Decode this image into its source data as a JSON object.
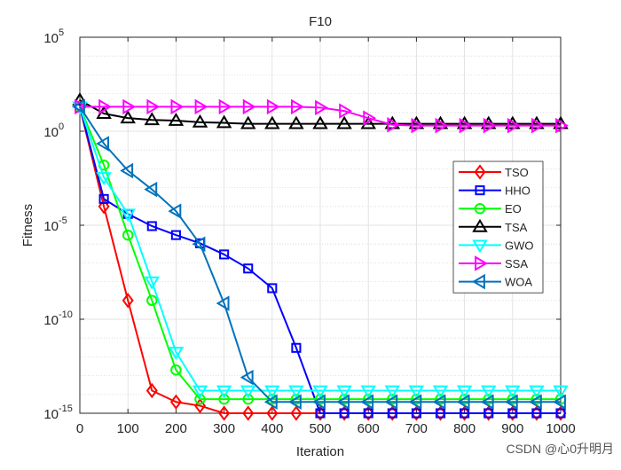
{
  "chart_data": {
    "type": "line",
    "title": "F10",
    "xlabel": "Iteration",
    "ylabel": "Fitness",
    "log_y": true,
    "grid": true,
    "minor_grid": true,
    "legend": "east",
    "watermark": "CSDN @心0升明月",
    "xlim": [
      0,
      1000
    ],
    "xticks": [
      0,
      100,
      200,
      300,
      400,
      500,
      600,
      700,
      800,
      900,
      1000
    ],
    "ylim": [
      1e-15,
      100000
    ],
    "yticks": [
      {
        "value": 1e-15,
        "label": "10",
        "exponent": "-15"
      },
      {
        "value": 1e-10,
        "label": "10",
        "exponent": "-10"
      },
      {
        "value": 1e-05,
        "label": "10",
        "exponent": "-5"
      },
      {
        "value": 1,
        "label": "10",
        "exponent": "0"
      },
      {
        "value": 100000,
        "label": "10",
        "exponent": "5"
      }
    ],
    "x": [
      0,
      50,
      100,
      150,
      200,
      250,
      300,
      350,
      400,
      450,
      500,
      550,
      600,
      650,
      700,
      750,
      800,
      850,
      900,
      950,
      1000
    ],
    "series": [
      {
        "name": "TSO",
        "color": "#ff0000",
        "marker": "diamond",
        "values": [
          20,
          0.0001,
          1e-09,
          1.6e-14,
          4e-15,
          2.5e-15,
          1e-15,
          1e-15,
          1e-15,
          1e-15,
          1e-15,
          1e-15,
          1e-15,
          1e-15,
          1e-15,
          1e-15,
          1e-15,
          1e-15,
          1e-15,
          1e-15,
          1e-15
        ]
      },
      {
        "name": "HHO",
        "color": "#0000ff",
        "marker": "square",
        "values": [
          20,
          0.00025,
          4e-05,
          9e-06,
          3e-06,
          1.1e-06,
          2.8e-07,
          5e-08,
          4.5e-09,
          3e-12,
          1e-15,
          1e-15,
          1e-15,
          1e-15,
          1e-15,
          1e-15,
          1e-15,
          1e-15,
          1e-15,
          1e-15,
          1e-15
        ]
      },
      {
        "name": "EO",
        "color": "#00ff00",
        "marker": "circle",
        "values": [
          20,
          0.016,
          3e-06,
          1e-09,
          2e-13,
          5.6e-15,
          5.6e-15,
          5.6e-15,
          5.6e-15,
          5.6e-15,
          5.6e-15,
          5.6e-15,
          5.6e-15,
          5.6e-15,
          5.6e-15,
          5.6e-15,
          5.6e-15,
          5.6e-15,
          5.6e-15,
          5.6e-15,
          5.6e-15
        ]
      },
      {
        "name": "TSA",
        "color": "#000000",
        "marker": "triangle-up",
        "values": [
          45,
          8.7,
          5,
          4,
          3.7,
          3,
          2.8,
          2.5,
          2.5,
          2.5,
          2.5,
          2.5,
          2.5,
          2.5,
          2.5,
          2.5,
          2.5,
          2.5,
          2.5,
          2.5,
          2.5
        ]
      },
      {
        "name": "GWO",
        "color": "#00ffff",
        "marker": "triangle-down",
        "values": [
          20,
          0.0035,
          4e-05,
          1e-08,
          1.8e-12,
          1.6e-14,
          1.6e-14,
          1.6e-14,
          1.6e-14,
          1.6e-14,
          1.6e-14,
          1.6e-14,
          1.6e-14,
          1.6e-14,
          1.6e-14,
          1.6e-14,
          1.6e-14,
          1.6e-14,
          1.6e-14,
          1.6e-14,
          1.6e-14
        ]
      },
      {
        "name": "SSA",
        "color": "#ff00ff",
        "marker": "triangle-right",
        "values": [
          20,
          20,
          20,
          20,
          20,
          20,
          20,
          20,
          20,
          20,
          18,
          12,
          5,
          2.2,
          2,
          2,
          2,
          2,
          2,
          2,
          2
        ]
      },
      {
        "name": "WOA",
        "color": "#0072bd",
        "marker": "triangle-left",
        "values": [
          20,
          0.22,
          0.008,
          0.0008,
          5.6e-05,
          1e-06,
          7e-10,
          8e-14,
          4e-15,
          4e-15,
          4e-15,
          4e-15,
          4e-15,
          4e-15,
          4e-15,
          4e-15,
          4e-15,
          4e-15,
          4e-15,
          4e-15,
          4e-15
        ]
      }
    ]
  }
}
